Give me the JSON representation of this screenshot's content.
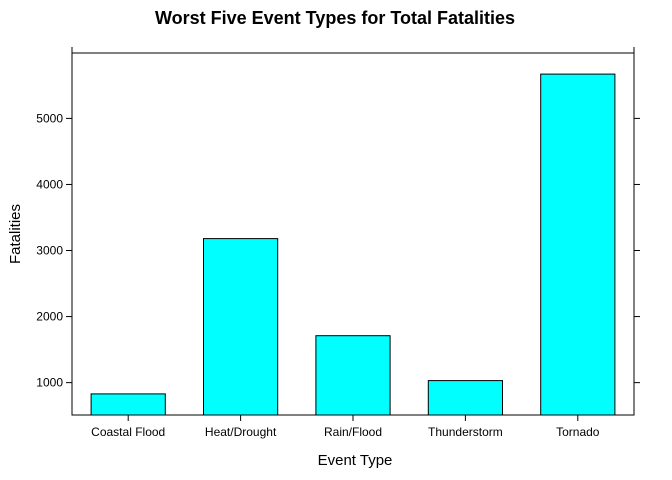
{
  "chart_data": {
    "type": "bar",
    "title": "Worst Five Event Types for Total Fatalities",
    "xlabel": "Event Type",
    "ylabel": "Fatalities",
    "categories": [
      "Coastal Flood",
      "Heat/Drought",
      "Rain/Flood",
      "Thunderstorm",
      "Tornado"
    ],
    "values": [
      830,
      3180,
      1710,
      1030,
      5670
    ],
    "ylim": [
      510,
      5990
    ],
    "yticks": [
      1000,
      2000,
      3000,
      4000,
      5000
    ],
    "grid": false,
    "bar_color": "#00FFFF",
    "bar_border_color": "#000000"
  }
}
